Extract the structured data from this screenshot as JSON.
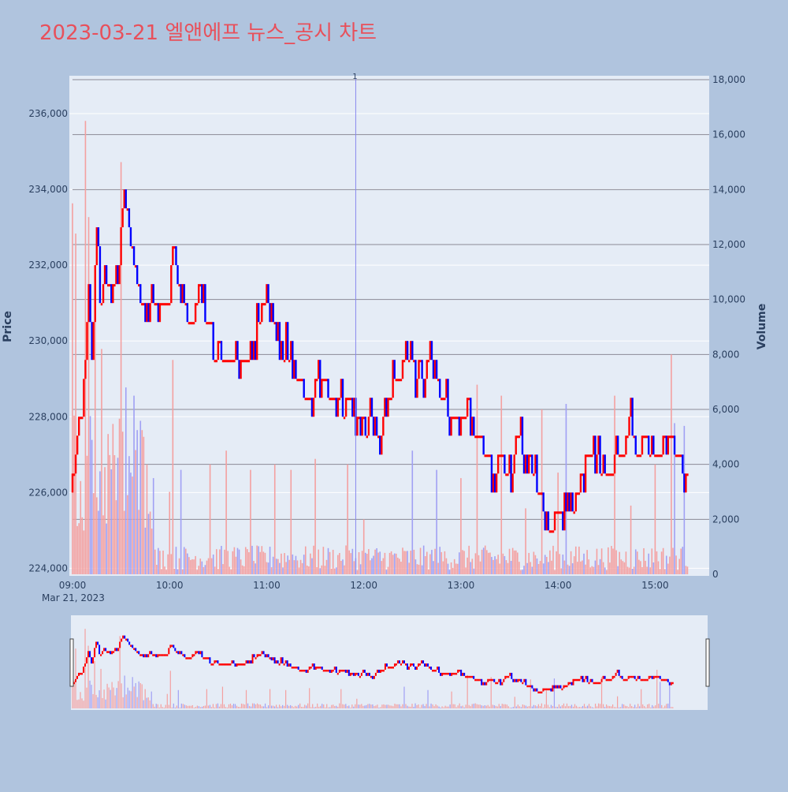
{
  "chart_data": {
    "type": "candlestick",
    "title": "2023-03-21 엘앤에프 뉴스_공시 차트",
    "y_title": "Price",
    "y2_title": "Volume",
    "x_date_label": "Mar 21, 2023",
    "x_ticks": [
      "09:00",
      "10:00",
      "11:00",
      "12:00",
      "13:00",
      "14:00",
      "15:00"
    ],
    "y_range": [
      223800,
      237000
    ],
    "y_ticks": [
      224000,
      226000,
      228000,
      230000,
      232000,
      234000,
      236000
    ],
    "y_tick_labels": [
      "224,000",
      "226,000",
      "228,000",
      "230,000",
      "232,000",
      "234,000",
      "236,000"
    ],
    "y2_range": [
      0,
      18000
    ],
    "y2_ticks": [
      0,
      2000,
      4000,
      6000,
      8000,
      10000,
      12000,
      14000,
      16000,
      18000
    ],
    "y2_tick_labels": [
      "0",
      "2,000",
      "4,000",
      "6,000",
      "8,000",
      "10,000",
      "12,000",
      "14,000",
      "16,000",
      "18,000"
    ],
    "x_range_minutes": [
      0,
      390
    ],
    "annotation": {
      "label": "1",
      "time": "11:55"
    },
    "colors": {
      "up": "#ff0000",
      "down": "#0000ff",
      "volume_up": "#f4a0a0",
      "volume_down": "#a0a0f4",
      "annotation_line": "#8888ee"
    },
    "price_path": [
      [
        "09:00",
        226000
      ],
      [
        "09:03",
        227500
      ],
      [
        "09:06",
        228000
      ],
      [
        "09:08",
        229500
      ],
      [
        "09:10",
        231500
      ],
      [
        "09:12",
        229000
      ],
      [
        "09:15",
        233000
      ],
      [
        "09:17",
        231000
      ],
      [
        "09:20",
        232000
      ],
      [
        "09:24",
        231000
      ],
      [
        "09:28",
        231500
      ],
      [
        "09:32",
        234000
      ],
      [
        "09:36",
        232500
      ],
      [
        "09:40",
        231500
      ],
      [
        "09:44",
        230500
      ],
      [
        "09:48",
        231000
      ],
      [
        "10:00",
        231000
      ],
      [
        "10:03",
        232500
      ],
      [
        "10:08",
        231000
      ],
      [
        "10:12",
        230500
      ],
      [
        "10:20",
        231000
      ],
      [
        "10:28",
        230000
      ],
      [
        "10:35",
        229500
      ],
      [
        "10:50",
        229500
      ],
      [
        "10:55",
        230500
      ],
      [
        "11:00",
        231500
      ],
      [
        "11:05",
        230500
      ],
      [
        "11:10",
        230000
      ],
      [
        "11:15",
        229500
      ],
      [
        "11:20",
        229000
      ],
      [
        "11:25",
        228500
      ],
      [
        "11:35",
        229000
      ],
      [
        "11:40",
        228500
      ],
      [
        "11:50",
        228500
      ],
      [
        "11:55",
        228000
      ],
      [
        "12:00",
        227500
      ],
      [
        "12:05",
        228000
      ],
      [
        "12:10",
        227500
      ],
      [
        "12:15",
        228500
      ],
      [
        "12:20",
        229000
      ],
      [
        "12:28",
        229500
      ],
      [
        "12:35",
        229000
      ],
      [
        "12:42",
        229500
      ],
      [
        "12:48",
        228500
      ],
      [
        "12:55",
        228000
      ],
      [
        "13:05",
        228000
      ],
      [
        "13:10",
        227500
      ],
      [
        "13:15",
        227000
      ],
      [
        "13:20",
        226500
      ],
      [
        "13:25",
        227000
      ],
      [
        "13:30",
        226500
      ],
      [
        "13:35",
        227500
      ],
      [
        "13:40",
        227000
      ],
      [
        "13:45",
        226500
      ],
      [
        "13:50",
        226000
      ],
      [
        "13:55",
        225000
      ],
      [
        "14:00",
        225500
      ],
      [
        "14:03",
        225000
      ],
      [
        "14:06",
        226000
      ],
      [
        "14:10",
        225500
      ],
      [
        "14:15",
        226500
      ],
      [
        "14:20",
        227000
      ],
      [
        "14:30",
        226500
      ],
      [
        "14:40",
        227000
      ],
      [
        "14:45",
        228000
      ],
      [
        "14:48",
        227000
      ],
      [
        "14:52",
        227500
      ],
      [
        "15:00",
        227000
      ],
      [
        "15:10",
        227500
      ],
      [
        "15:15",
        227000
      ],
      [
        "15:18",
        226500
      ]
    ],
    "volume_peaks": [
      [
        "09:00",
        13500
      ],
      [
        "09:02",
        12400
      ],
      [
        "09:08",
        16500
      ],
      [
        "09:10",
        13000
      ],
      [
        "09:14",
        9800
      ],
      [
        "09:18",
        8200
      ],
      [
        "09:30",
        15000
      ],
      [
        "09:33",
        6800
      ],
      [
        "09:38",
        6500
      ],
      [
        "09:46",
        4000
      ],
      [
        "09:50",
        3500
      ],
      [
        "10:00",
        3000
      ],
      [
        "10:02",
        7800
      ],
      [
        "10:07",
        3800
      ],
      [
        "10:25",
        4000
      ],
      [
        "10:35",
        4500
      ],
      [
        "10:50",
        3800
      ],
      [
        "11:05",
        4000
      ],
      [
        "11:15",
        3800
      ],
      [
        "11:30",
        4200
      ],
      [
        "11:50",
        4000
      ],
      [
        "12:00",
        2000
      ],
      [
        "12:30",
        4500
      ],
      [
        "12:45",
        3800
      ],
      [
        "13:00",
        3500
      ],
      [
        "13:10",
        6900
      ],
      [
        "13:25",
        6500
      ],
      [
        "13:40",
        2400
      ],
      [
        "13:50",
        6000
      ],
      [
        "14:00",
        3700
      ],
      [
        "14:05",
        6200
      ],
      [
        "14:35",
        6500
      ],
      [
        "14:45",
        2500
      ],
      [
        "15:00",
        4000
      ],
      [
        "15:10",
        8000
      ],
      [
        "15:12",
        5500
      ],
      [
        "15:18",
        5400
      ]
    ]
  }
}
